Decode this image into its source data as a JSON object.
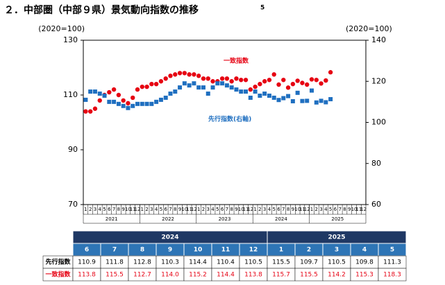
{
  "chart_data": {
    "type": "scatter",
    "title": "２．中部圏（中部９県）景気動向指数の推移",
    "page_number": "5",
    "y_axis_label": "(2020=100)",
    "y2_axis_label": "(2020=100)",
    "categories": [
      "1",
      "2",
      "3",
      "4",
      "5",
      "6",
      "7",
      "8",
      "9",
      "10",
      "11",
      "12",
      "1",
      "2",
      "3",
      "4",
      "5",
      "6",
      "7",
      "8",
      "9",
      "10",
      "11",
      "12",
      "1",
      "2",
      "3",
      "4",
      "5",
      "6",
      "7",
      "8",
      "9",
      "10",
      "11",
      "12",
      "1",
      "2",
      "3",
      "4",
      "5",
      "6",
      "7",
      "8",
      "9",
      "10",
      "11",
      "12",
      "1",
      "2",
      "3",
      "4",
      "5",
      "6",
      "7",
      "8",
      "9",
      "10",
      "11",
      "12"
    ],
    "years": [
      "2021",
      "2022",
      "2023",
      "2024",
      "2025"
    ],
    "ylim": [
      70,
      130
    ],
    "yticks": [
      70,
      90,
      110,
      130
    ],
    "y2lim": [
      60,
      140
    ],
    "y2ticks": [
      60,
      80,
      100,
      120,
      140
    ],
    "series": [
      {
        "name": "一致指数",
        "color": "#e60012",
        "marker": "circle",
        "values": [
          104,
          104,
          105,
          108,
          110,
          111,
          112,
          110,
          108,
          107,
          109,
          112,
          113,
          113,
          114,
          114,
          115,
          116,
          117,
          117.5,
          118,
          118,
          117.5,
          117.5,
          117,
          116,
          116,
          115,
          115,
          116,
          116,
          115,
          116,
          115.5,
          115.5,
          112,
          113,
          114,
          115,
          115.5,
          117.5,
          113.8,
          115.5,
          112.7,
          114.0,
          115.2,
          114.4,
          113.8,
          115.7,
          115.5,
          114.2,
          115.3,
          118.3,
          null,
          null,
          null,
          null,
          null,
          null,
          null
        ]
      },
      {
        "name": "先行指数(右軸)",
        "color": "#1f6fc0",
        "marker": "square",
        "axis": "y2",
        "values": [
          111,
          115,
          115,
          114,
          113,
          110,
          110,
          109,
          108,
          107,
          108,
          109,
          109,
          109,
          109,
          110,
          111,
          112,
          114,
          115,
          117,
          119,
          118,
          119,
          117,
          117,
          114,
          117,
          119,
          119,
          118,
          117,
          116,
          115,
          115,
          112,
          115,
          113,
          114,
          113,
          112,
          110.9,
          111.8,
          112.8,
          110.3,
          114.4,
          110.4,
          110.5,
          115.5,
          109.7,
          110.5,
          109.8,
          111.3,
          null,
          null,
          null,
          null,
          null,
          null,
          null
        ]
      }
    ]
  },
  "table": {
    "years": [
      "2024",
      "2025"
    ],
    "months": [
      "6",
      "7",
      "8",
      "9",
      "10",
      "11",
      "12",
      "1",
      "2",
      "3",
      "4",
      "5"
    ],
    "rows": [
      {
        "label": "先行指数",
        "values": [
          "110.9",
          "111.8",
          "112.8",
          "110.3",
          "114.4",
          "110.4",
          "110.5",
          "115.5",
          "109.7",
          "110.5",
          "109.8",
          "111.3"
        ]
      },
      {
        "label": "一致指数",
        "values": [
          "113.8",
          "115.5",
          "112.7",
          "114.0",
          "115.2",
          "114.4",
          "113.8",
          "115.7",
          "115.5",
          "114.2",
          "115.3",
          "118.3"
        ]
      }
    ]
  }
}
